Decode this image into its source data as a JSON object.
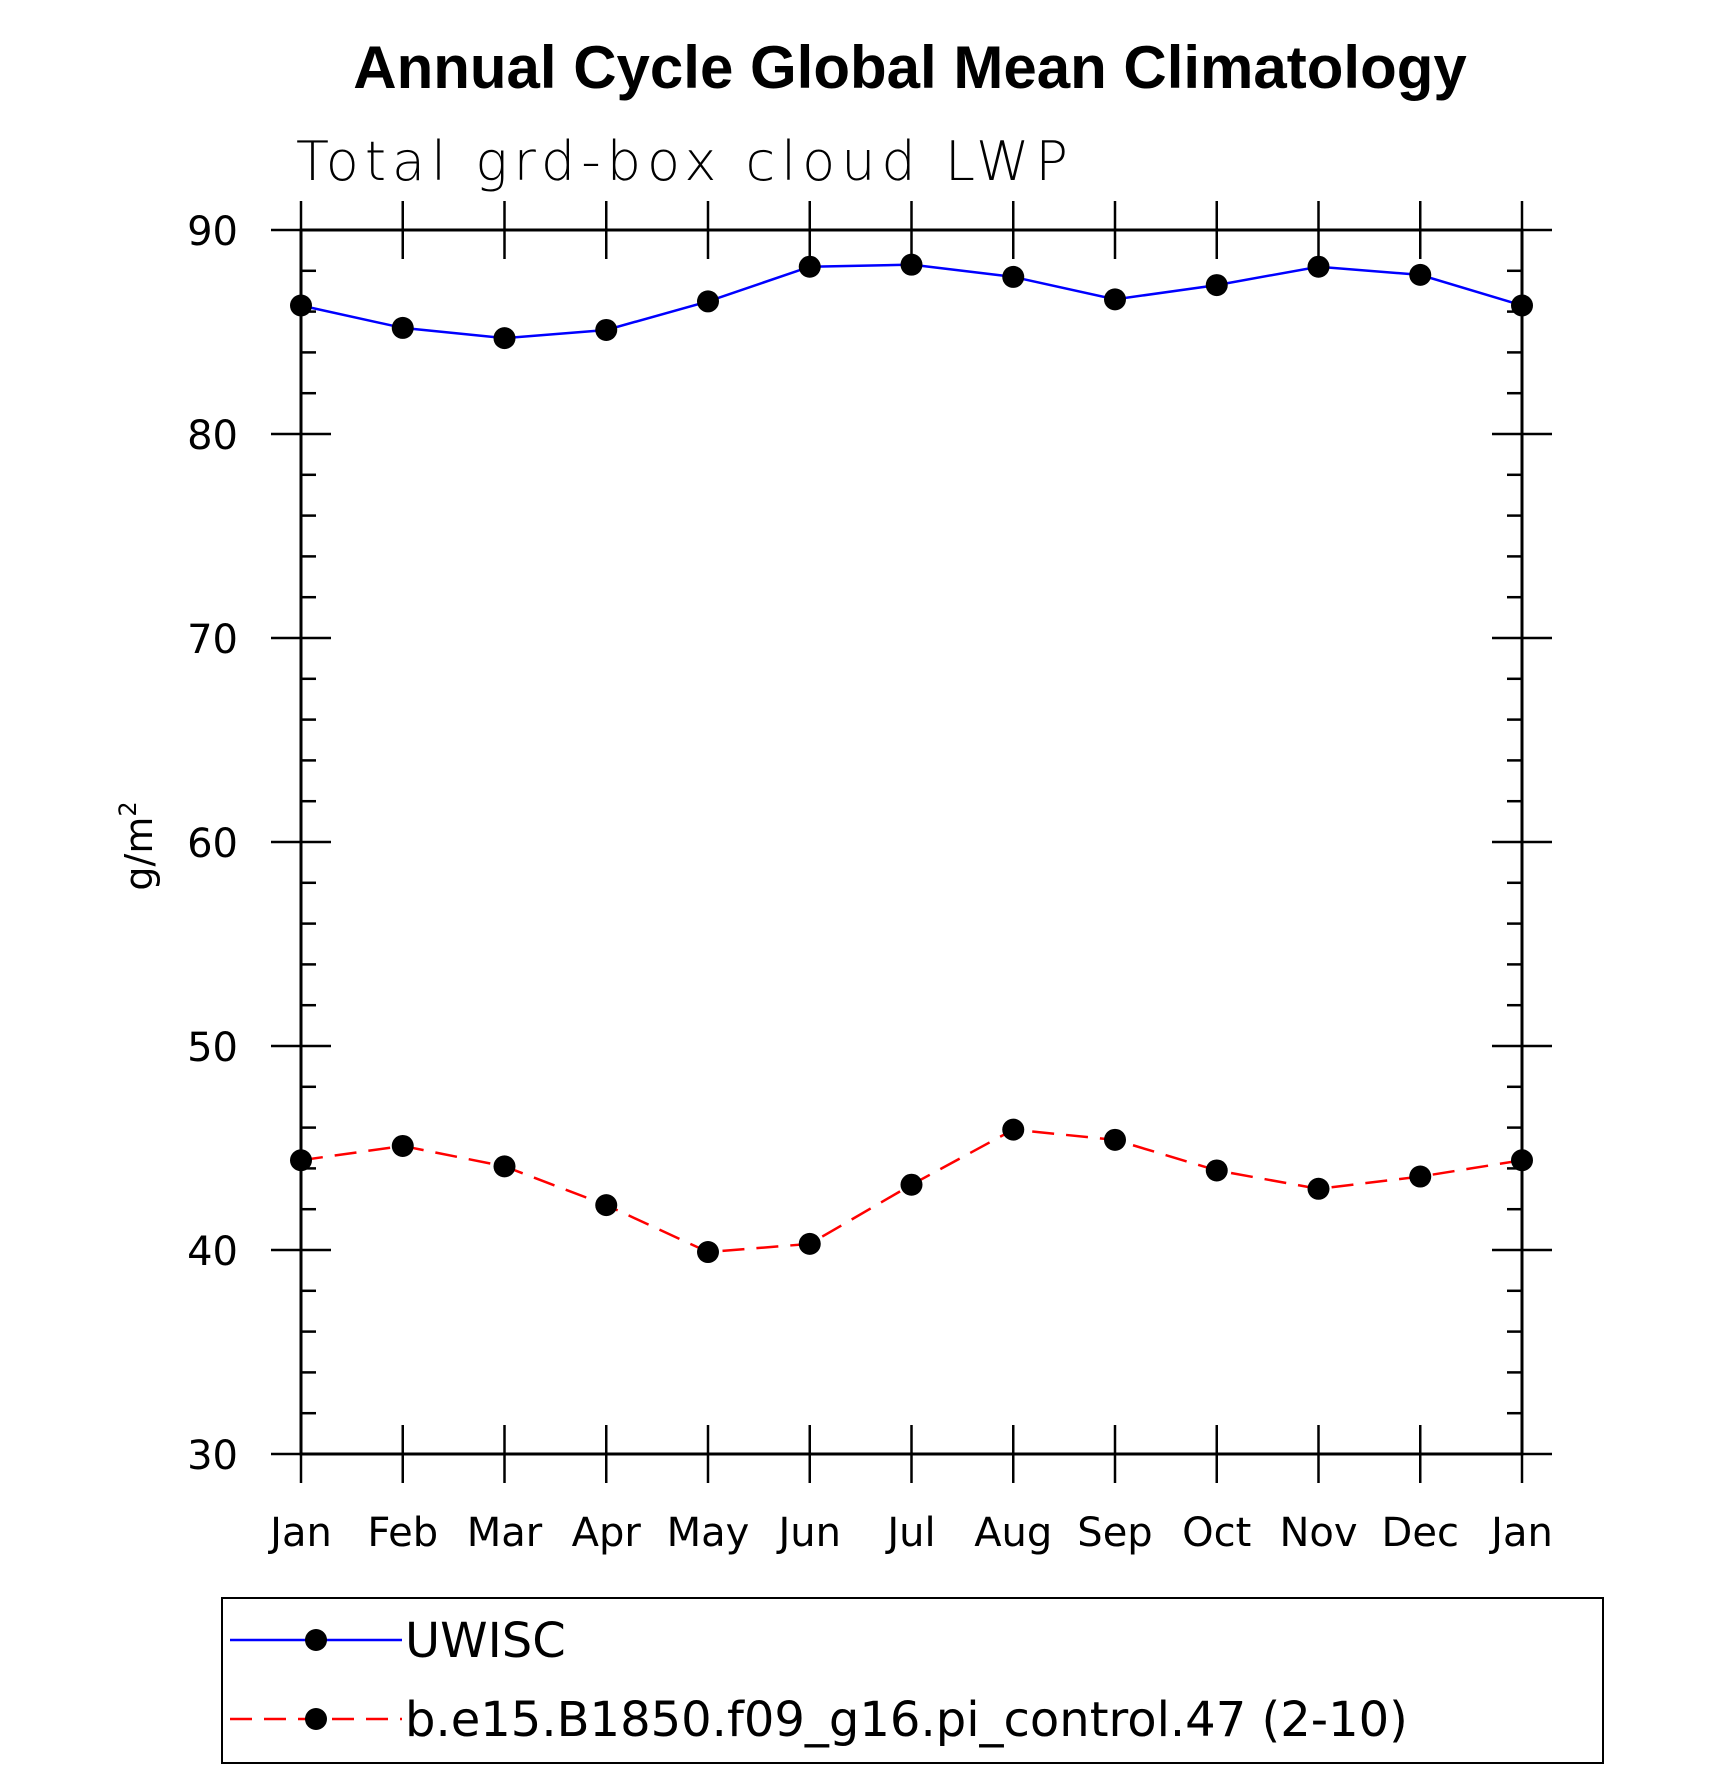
{
  "chart_data": {
    "type": "line",
    "title": "Annual Cycle Global Mean Climatology",
    "subtitle": "Total grd-box cloud LWP",
    "ylabel": "g/m",
    "ylabel_superscript": "2",
    "xlabel": "",
    "categories": [
      "Jan",
      "Feb",
      "Mar",
      "Apr",
      "May",
      "Jun",
      "Jul",
      "Aug",
      "Sep",
      "Oct",
      "Nov",
      "Dec",
      "Jan"
    ],
    "ylim": [
      30,
      90
    ],
    "yticks": [
      30,
      40,
      50,
      60,
      70,
      80,
      90
    ],
    "grid": false,
    "legend_position": "bottom",
    "series": [
      {
        "name": "UWISC",
        "color": "#0000ff",
        "style": "solid",
        "marker": "circle",
        "values": [
          86.3,
          85.2,
          84.7,
          85.1,
          86.5,
          88.2,
          88.3,
          87.7,
          86.6,
          87.3,
          88.2,
          87.8,
          86.3
        ]
      },
      {
        "name": "b.e15.B1850.f09_g16.pi_control.47 (2-10)",
        "color": "#ff0000",
        "style": "dashed",
        "marker": "circle",
        "values": [
          44.4,
          45.1,
          44.1,
          42.2,
          39.9,
          40.3,
          43.2,
          45.9,
          45.4,
          43.9,
          43.0,
          43.6,
          44.4
        ]
      }
    ]
  }
}
